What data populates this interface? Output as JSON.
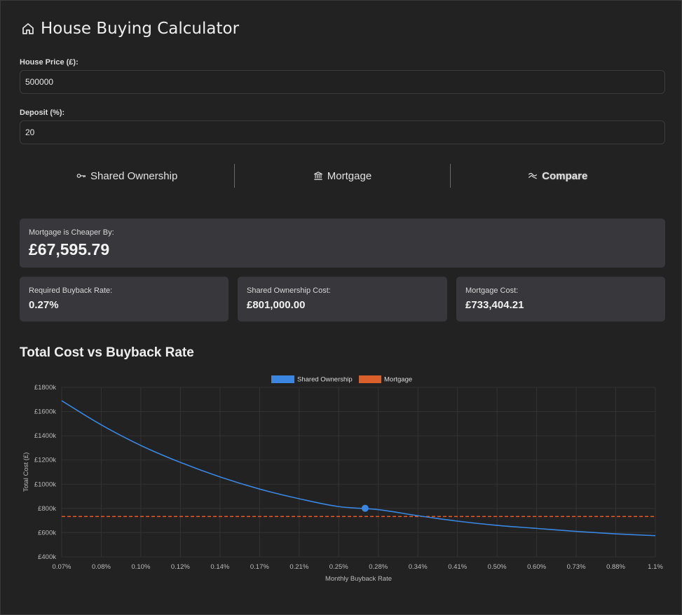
{
  "app": {
    "title": "House Buying Calculator",
    "icon": "home-icon"
  },
  "form": {
    "price_label": "House Price (£):",
    "price_value": "500000",
    "deposit_label": "Deposit (%):",
    "deposit_value": "20"
  },
  "tabs": [
    {
      "label": "Shared Ownership",
      "icon": "key-icon",
      "active": false
    },
    {
      "label": "Mortgage",
      "icon": "bank-icon",
      "active": false
    },
    {
      "label": "Compare",
      "icon": "trend-icon",
      "active": true
    }
  ],
  "summary": {
    "headline_label": "Mortgage is Cheaper By:",
    "headline_value": "£67,595.79",
    "cards": [
      {
        "label": "Required Buyback Rate:",
        "value": "0.27%"
      },
      {
        "label": "Shared Ownership Cost:",
        "value": "£801,000.00"
      },
      {
        "label": "Mortgage Cost:",
        "value": "£733,404.21"
      }
    ]
  },
  "chart_title": "Total Cost vs Buyback Rate",
  "colors": {
    "shared": "#3a86e0",
    "mortgage": "#d9602a",
    "card": "#37373c",
    "background": "#222222"
  },
  "chart_data": {
    "type": "line",
    "xlabel": "Monthly Buyback Rate",
    "ylabel": "Total Cost (£)",
    "x_ticks": [
      "0.07%",
      "0.08%",
      "0.10%",
      "0.12%",
      "0.14%",
      "0.17%",
      "0.21%",
      "0.25%",
      "0.28%",
      "0.34%",
      "0.41%",
      "0.50%",
      "0.60%",
      "0.73%",
      "0.88%",
      "1.1%"
    ],
    "y_ticks": [
      "£400k",
      "£600k",
      "£800k",
      "£1000k",
      "£1200k",
      "£1400k",
      "£1600k",
      "£1800k"
    ],
    "ylim": [
      400,
      1800
    ],
    "y_unit": "£k",
    "legend_position": "top-center",
    "grid": true,
    "series": [
      {
        "name": "Shared Ownership",
        "style": "solid",
        "values": [
          1690,
          1490,
          1320,
          1180,
          1060,
          960,
          880,
          815,
          790,
          740,
          695,
          660,
          635,
          610,
          590,
          575
        ]
      },
      {
        "name": "Mortgage",
        "style": "dashed",
        "values": [
          733.4,
          733.4,
          733.4,
          733.4,
          733.4,
          733.4,
          733.4,
          733.4,
          733.4,
          733.4,
          733.4,
          733.4,
          733.4,
          733.4,
          733.4,
          733.4
        ]
      }
    ],
    "highlight_point": {
      "x": 0.27,
      "x_label": "0.27%",
      "y": 801
    }
  }
}
